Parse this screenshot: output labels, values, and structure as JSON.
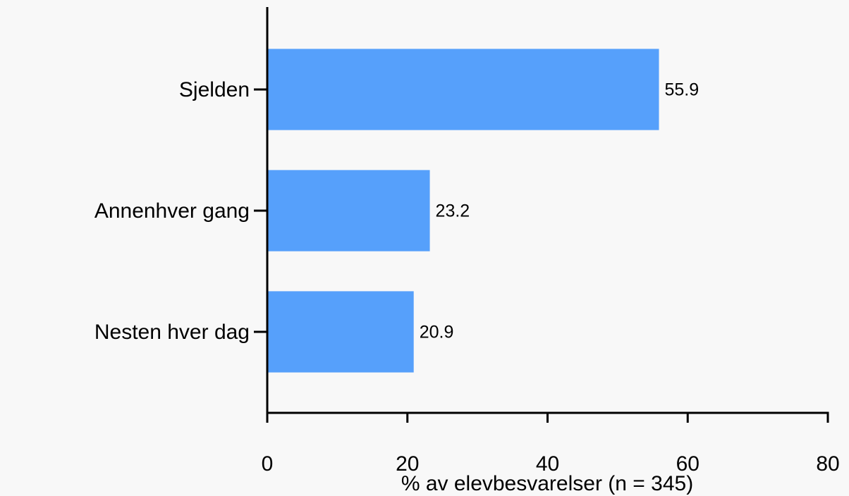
{
  "chart_data": {
    "type": "bar",
    "orientation": "horizontal",
    "x_label": "% av elevbesvarelser (n = 345)",
    "categories": [
      "Sjelden",
      "Annenhver gang",
      "Nesten hver dag"
    ],
    "values": [
      55.9,
      23.2,
      20.9
    ],
    "color": "#56a0fb",
    "xlim": [
      0,
      80
    ],
    "xticks": [
      0,
      20,
      40,
      60,
      80
    ],
    "grid": false
  }
}
